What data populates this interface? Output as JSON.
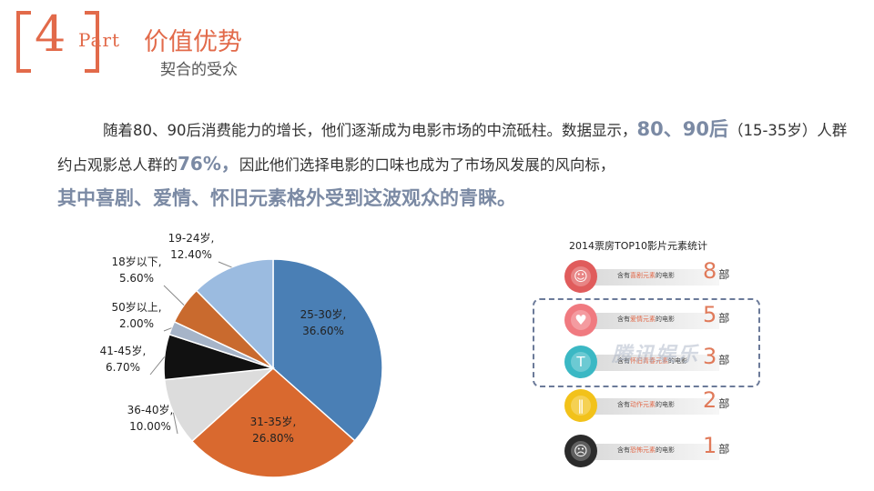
{
  "header": {
    "number": "4",
    "part": "Part",
    "title": "价值优势",
    "subtitle": "契合的受众"
  },
  "paragraph": {
    "t1": "随着80、90后消费能力的增长，他们逐渐成为电影市场的中流砥柱。数据显示，",
    "h1": "80、90后",
    "t2": "（15-35岁）人群约占观影总人群的",
    "h2": "76%，",
    "t3": "因此他们选择电影的口味也成为了市场风发展的风向标，",
    "h3": "其中喜剧、爱情、怀旧元素格外受到这波观众的青睐。"
  },
  "chart_data": [
    {
      "type": "pie",
      "title": "",
      "slices": [
        {
          "name": "25-30岁",
          "value": 36.6,
          "label": "36.60%",
          "color": "#4a7fb5"
        },
        {
          "name": "31-35岁",
          "value": 26.8,
          "label": "26.80%",
          "color": "#d9692f"
        },
        {
          "name": "36-40岁",
          "value": 10.0,
          "label": "10.00%",
          "color": "#dcdcdc"
        },
        {
          "name": "41-45岁",
          "value": 6.7,
          "label": "6.70%",
          "color": "#111111"
        },
        {
          "name": "50岁以上",
          "value": 2.0,
          "label": "2.00%",
          "color": "#a6b4c8"
        },
        {
          "name": "18岁以下",
          "value": 5.6,
          "label": "5.60%",
          "color": "#c96a2e"
        },
        {
          "name": "19-24岁",
          "value": 12.4,
          "label": "12.40%",
          "color": "#9bbbe0"
        }
      ],
      "slice_labels": [
        {
          "name": "25-30岁,",
          "pct": "36.60%"
        },
        {
          "name": "31-35岁,",
          "pct": "26.80%"
        },
        {
          "name": "36-40岁,",
          "pct": "10.00%"
        },
        {
          "name": "41-45岁,",
          "pct": "6.70%"
        },
        {
          "name": "50岁以上,",
          "pct": "2.00%"
        },
        {
          "name": "18岁以下,",
          "pct": "5.60%"
        },
        {
          "name": "19-24岁,",
          "pct": "12.40%"
        }
      ]
    },
    {
      "type": "table",
      "title": "2014票房TOP10影片元素统计",
      "rows": [
        {
          "prefix": "含有",
          "element": "喜剧元素",
          "suffix": "的电影",
          "count": "8",
          "unit": "部",
          "color": "#e05c5c",
          "icon": "comedy-face-icon"
        },
        {
          "prefix": "含有",
          "element": "爱情元素",
          "suffix": "的电影",
          "count": "5",
          "unit": "部",
          "color": "#f07a80",
          "icon": "heart-icon"
        },
        {
          "prefix": "含有",
          "element": "怀旧青春元素",
          "suffix": "的电影",
          "count": "3",
          "unit": "部",
          "color": "#3bb8c4",
          "icon": "tshirt-icon"
        },
        {
          "prefix": "含有",
          "element": "动作元素",
          "suffix": "的电影",
          "count": "2",
          "unit": "部",
          "color": "#f2c21a",
          "icon": "pause-icon"
        },
        {
          "prefix": "含有",
          "element": "恐怖元素",
          "suffix": "的电影",
          "count": "1",
          "unit": "部",
          "color": "#2b2b2b",
          "icon": "scream-mask-icon"
        }
      ],
      "watermark": "腾讯娱乐"
    }
  ]
}
